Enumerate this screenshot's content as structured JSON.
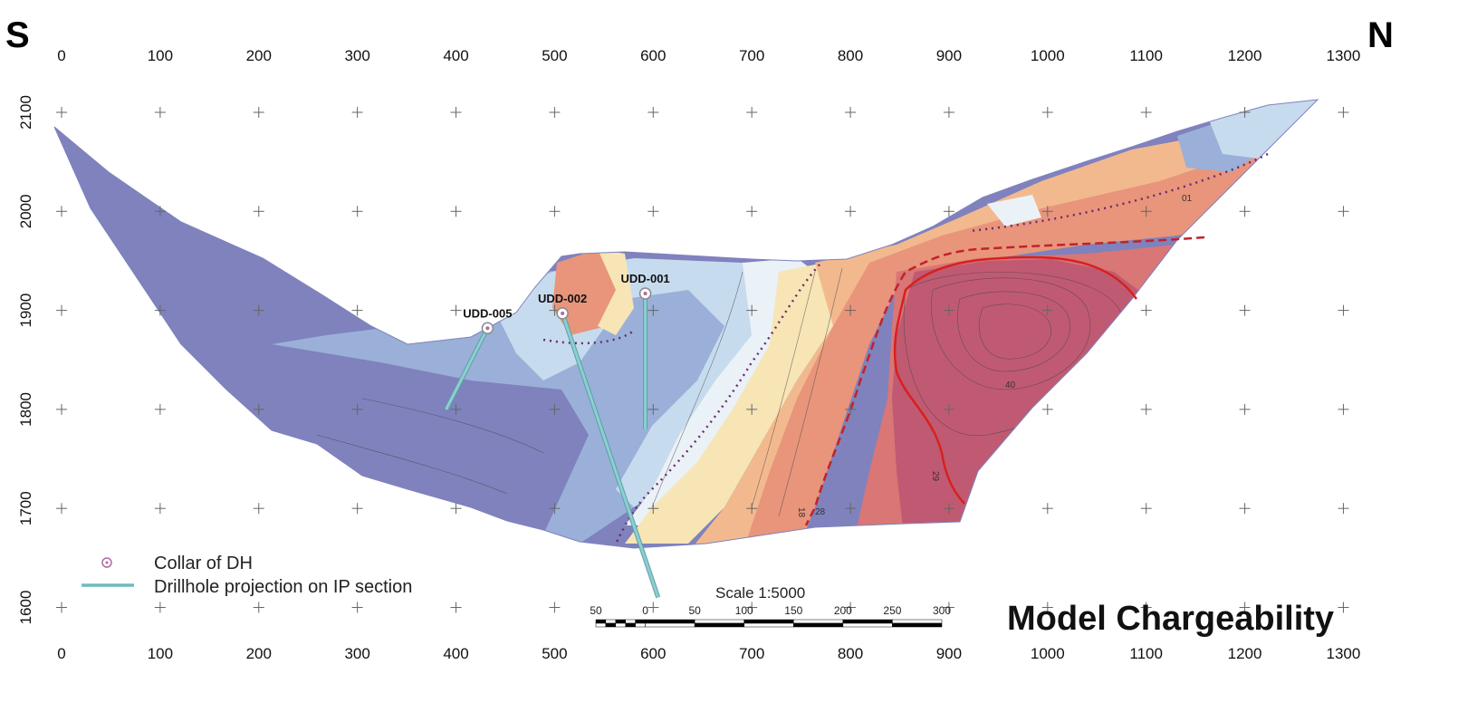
{
  "direction": {
    "left": "S",
    "right": "N"
  },
  "axes": {
    "x_ticks": [
      "0",
      "100",
      "200",
      "300",
      "400",
      "500",
      "600",
      "700",
      "800",
      "900",
      "1000",
      "1100",
      "1200",
      "1300"
    ],
    "y_ticks": [
      "2100",
      "2000",
      "1900",
      "1800",
      "1700",
      "1600"
    ]
  },
  "drillholes": [
    {
      "id": "UDD-005",
      "label": "UDD-005",
      "collar_x": 432,
      "collar_y": 1882,
      "end_x": 390,
      "end_y": 1800
    },
    {
      "id": "UDD-002",
      "label": "UDD-002",
      "collar_x": 508,
      "collar_y": 1897,
      "end_x": 605,
      "end_y": 1610
    },
    {
      "id": "UDD-001",
      "label": "UDD-001",
      "collar_x": 592,
      "collar_y": 1917,
      "end_x": 592,
      "end_y": 1780
    }
  ],
  "contour_labels": [
    "40",
    "29",
    "18",
    "28",
    "01"
  ],
  "legend": {
    "items": [
      {
        "symbol": "collar-icon",
        "label": "Collar of DH"
      },
      {
        "symbol": "drillhole-line-icon",
        "label": "Drillhole projection on IP section"
      }
    ]
  },
  "scale": {
    "text": "Scale 1:5000",
    "ticks": [
      "50",
      "0",
      "50",
      "100",
      "150",
      "200",
      "250",
      "300"
    ]
  },
  "title": "Model Chargeability",
  "colors": {
    "deep_blue": "#7f82bd",
    "blue": "#9ab0d8",
    "light_blue": "#c7dbee",
    "pale": "#eaf2f7",
    "cream": "#f7e5b6",
    "light_orange": "#f3b98e",
    "orange": "#e8957c",
    "red": "#d97676",
    "deep_red": "#c05a72",
    "drillhole": "#8ccfd3"
  }
}
